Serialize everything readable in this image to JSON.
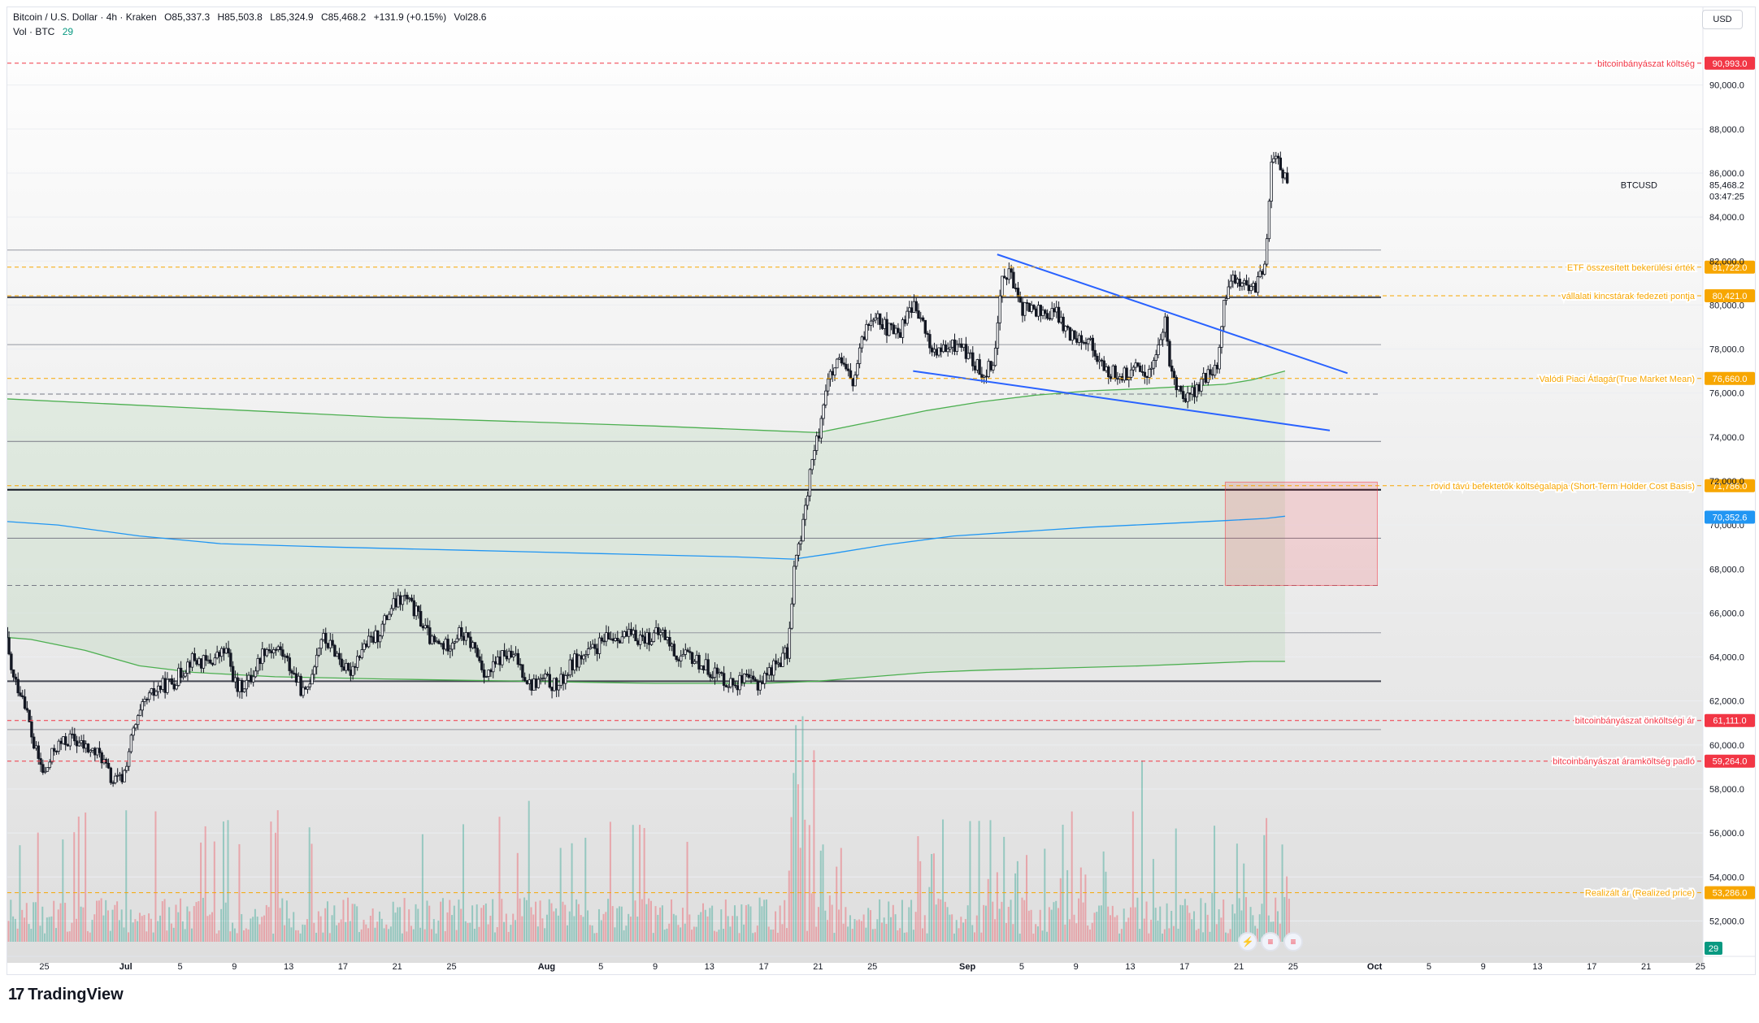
{
  "header": {
    "symbol": "Bitcoin / U.S. Dollar · 4h · Kraken",
    "open": "O85,337.3",
    "high": "H85,503.8",
    "low": "L85,324.9",
    "close": "C85,468.2",
    "change": "+131.9 (+0.15%)",
    "vol_label": "Vol28.6",
    "sub_label": "Vol · BTC",
    "sub_value": "29"
  },
  "currency_button": "USD",
  "brand": "TradingView",
  "icons": [
    "tradingview-logo-icon",
    "lightning-icon",
    "us-flag-icon",
    "us-flag-icon"
  ],
  "colors": {
    "up": "#089981",
    "down": "#131722",
    "red_level": "#f23645",
    "orange_level": "#f7a600",
    "blue_level": "#2962ff",
    "green_band": "#4caf50",
    "blue_ma": "#2196f3",
    "pink_box": "#f8bbd0"
  },
  "chart_data": {
    "type": "candlestick",
    "symbol": "BTCUSD",
    "timeframe": "4h",
    "ylim": [
      50500,
      92500
    ],
    "y_ticks": [
      52000,
      54000,
      56000,
      58000,
      60000,
      62000,
      64000,
      66000,
      68000,
      70000,
      72000,
      74000,
      76000,
      78000,
      80000,
      82000,
      84000,
      86000,
      88000,
      90000
    ],
    "y_tick_labels": [
      "52,000.0",
      "54,000.0",
      "56,000.0",
      "58,000.0",
      "60,000.0",
      "62,000.0",
      "64,000.0",
      "66,000.0",
      "68,000.0",
      "70,000.0",
      "72,000.0",
      "74,000.0",
      "76,000.0",
      "78,000.0",
      "80,000.0",
      "82,000.0",
      "84,000.0",
      "86,000.0",
      "88,000.0",
      "90,000.0"
    ],
    "x_ticks": [
      {
        "day": -5,
        "label": "25"
      },
      {
        "day": 1,
        "label": "Jul"
      },
      {
        "day": 5,
        "label": "5"
      },
      {
        "day": 9,
        "label": "9"
      },
      {
        "day": 13,
        "label": "13"
      },
      {
        "day": 17,
        "label": "17"
      },
      {
        "day": 21,
        "label": "21"
      },
      {
        "day": 25,
        "label": "25"
      },
      {
        "day": 32,
        "label": "Aug"
      },
      {
        "day": 36,
        "label": "5"
      },
      {
        "day": 40,
        "label": "9"
      },
      {
        "day": 44,
        "label": "13"
      },
      {
        "day": 48,
        "label": "17"
      },
      {
        "day": 52,
        "label": "21"
      },
      {
        "day": 56,
        "label": "25"
      },
      {
        "day": 63,
        "label": "Sep"
      },
      {
        "day": 67,
        "label": "5"
      },
      {
        "day": 71,
        "label": "9"
      },
      {
        "day": 75,
        "label": "13"
      },
      {
        "day": 79,
        "label": "17"
      },
      {
        "day": 83,
        "label": "21"
      },
      {
        "day": 87,
        "label": "25"
      },
      {
        "day": 93,
        "label": "Oct"
      },
      {
        "day": 97,
        "label": "5"
      },
      {
        "day": 101,
        "label": "9"
      },
      {
        "day": 105,
        "label": "13"
      },
      {
        "day": 109,
        "label": "17"
      },
      {
        "day": 113,
        "label": "21"
      },
      {
        "day": 117,
        "label": "25"
      }
    ],
    "price_path": [
      {
        "day": -8.6,
        "price": 64600
      },
      {
        "day": -8.0,
        "price": 65400
      },
      {
        "day": -7.3,
        "price": 63000
      },
      {
        "day": -6.5,
        "price": 62200
      },
      {
        "day": -5.8,
        "price": 60000
      },
      {
        "day": -5.0,
        "price": 58600
      },
      {
        "day": -4.2,
        "price": 59900
      },
      {
        "day": -3.0,
        "price": 60300
      },
      {
        "day": -1.8,
        "price": 59800
      },
      {
        "day": -0.8,
        "price": 59500
      },
      {
        "day": 0.0,
        "price": 58300
      },
      {
        "day": 0.8,
        "price": 58500
      },
      {
        "day": 1.5,
        "price": 60500
      },
      {
        "day": 2.4,
        "price": 61900
      },
      {
        "day": 3.4,
        "price": 62600
      },
      {
        "day": 4.6,
        "price": 62900
      },
      {
        "day": 5.8,
        "price": 63900
      },
      {
        "day": 7.0,
        "price": 63700
      },
      {
        "day": 8.4,
        "price": 64300
      },
      {
        "day": 9.2,
        "price": 62500
      },
      {
        "day": 10.2,
        "price": 63000
      },
      {
        "day": 11.2,
        "price": 64400
      },
      {
        "day": 12.4,
        "price": 64300
      },
      {
        "day": 13.4,
        "price": 63200
      },
      {
        "day": 14.2,
        "price": 62200
      },
      {
        "day": 15.4,
        "price": 64900
      },
      {
        "day": 16.4,
        "price": 64300
      },
      {
        "day": 17.4,
        "price": 63200
      },
      {
        "day": 18.4,
        "price": 64400
      },
      {
        "day": 19.6,
        "price": 65000
      },
      {
        "day": 20.6,
        "price": 66300
      },
      {
        "day": 21.6,
        "price": 66700
      },
      {
        "day": 22.6,
        "price": 65800
      },
      {
        "day": 23.6,
        "price": 64600
      },
      {
        "day": 24.6,
        "price": 64500
      },
      {
        "day": 25.6,
        "price": 65100
      },
      {
        "day": 26.6,
        "price": 64500
      },
      {
        "day": 27.6,
        "price": 63100
      },
      {
        "day": 28.8,
        "price": 64100
      },
      {
        "day": 29.8,
        "price": 63900
      },
      {
        "day": 30.8,
        "price": 62700
      },
      {
        "day": 31.8,
        "price": 63000
      },
      {
        "day": 32.8,
        "price": 62600
      },
      {
        "day": 34.0,
        "price": 63800
      },
      {
        "day": 35.0,
        "price": 64100
      },
      {
        "day": 36.2,
        "price": 64700
      },
      {
        "day": 37.2,
        "price": 65000
      },
      {
        "day": 38.4,
        "price": 64900
      },
      {
        "day": 39.6,
        "price": 64900
      },
      {
        "day": 40.6,
        "price": 65100
      },
      {
        "day": 41.6,
        "price": 64000
      },
      {
        "day": 42.6,
        "price": 64000
      },
      {
        "day": 43.6,
        "price": 63600
      },
      {
        "day": 44.6,
        "price": 63200
      },
      {
        "day": 45.6,
        "price": 62800
      },
      {
        "day": 46.6,
        "price": 62900
      },
      {
        "day": 47.6,
        "price": 62800
      },
      {
        "day": 48.6,
        "price": 63500
      },
      {
        "day": 49.4,
        "price": 64000
      },
      {
        "day": 49.8,
        "price": 64200
      },
      {
        "day": 50.2,
        "price": 68000
      },
      {
        "day": 50.8,
        "price": 69500
      },
      {
        "day": 51.4,
        "price": 72500
      },
      {
        "day": 52.0,
        "price": 74000
      },
      {
        "day": 52.6,
        "price": 76400
      },
      {
        "day": 53.6,
        "price": 77400
      },
      {
        "day": 54.6,
        "price": 76400
      },
      {
        "day": 55.4,
        "price": 78700
      },
      {
        "day": 56.2,
        "price": 79800
      },
      {
        "day": 57.0,
        "price": 78900
      },
      {
        "day": 58.0,
        "price": 78700
      },
      {
        "day": 58.8,
        "price": 80100
      },
      {
        "day": 59.6,
        "price": 79300
      },
      {
        "day": 60.4,
        "price": 77900
      },
      {
        "day": 61.4,
        "price": 77900
      },
      {
        "day": 62.4,
        "price": 78300
      },
      {
        "day": 63.4,
        "price": 77400
      },
      {
        "day": 64.2,
        "price": 76900
      },
      {
        "day": 65.0,
        "price": 77600
      },
      {
        "day": 65.6,
        "price": 81600
      },
      {
        "day": 66.2,
        "price": 81400
      },
      {
        "day": 66.8,
        "price": 79900
      },
      {
        "day": 67.8,
        "price": 79800
      },
      {
        "day": 68.8,
        "price": 79600
      },
      {
        "day": 69.6,
        "price": 79600
      },
      {
        "day": 70.4,
        "price": 78700
      },
      {
        "day": 71.4,
        "price": 78600
      },
      {
        "day": 72.2,
        "price": 78200
      },
      {
        "day": 73.0,
        "price": 77000
      },
      {
        "day": 73.8,
        "price": 76900
      },
      {
        "day": 74.8,
        "price": 76800
      },
      {
        "day": 75.6,
        "price": 77100
      },
      {
        "day": 76.4,
        "price": 76900
      },
      {
        "day": 77.2,
        "price": 78400
      },
      {
        "day": 77.6,
        "price": 79200
      },
      {
        "day": 78.0,
        "price": 76800
      },
      {
        "day": 78.6,
        "price": 76300
      },
      {
        "day": 79.2,
        "price": 75800
      },
      {
        "day": 79.8,
        "price": 76100
      },
      {
        "day": 80.6,
        "price": 76700
      },
      {
        "day": 81.4,
        "price": 77200
      },
      {
        "day": 82.0,
        "price": 80400
      },
      {
        "day": 82.6,
        "price": 81300
      },
      {
        "day": 83.2,
        "price": 81100
      },
      {
        "day": 83.8,
        "price": 80500
      },
      {
        "day": 84.4,
        "price": 81000
      },
      {
        "day": 85.0,
        "price": 82300
      },
      {
        "day": 85.4,
        "price": 86200
      },
      {
        "day": 85.8,
        "price": 87000
      },
      {
        "day": 86.2,
        "price": 86000
      },
      {
        "day": 86.6,
        "price": 85500
      }
    ],
    "support_trendline": [
      {
        "day": 59.0,
        "price": 77000
      },
      {
        "day": 89.7,
        "price": 74300
      }
    ],
    "resistance_trendline": [
      {
        "day": 65.2,
        "price": 82300
      },
      {
        "day": 91.0,
        "price": 76900
      }
    ],
    "green_upper_band": [
      {
        "day": -10.0,
        "price": 75800
      },
      {
        "day": 0.0,
        "price": 75500
      },
      {
        "day": 10.0,
        "price": 75200
      },
      {
        "day": 20.0,
        "price": 74900
      },
      {
        "day": 30.0,
        "price": 74700
      },
      {
        "day": 40.0,
        "price": 74500
      },
      {
        "day": 48.0,
        "price": 74300
      },
      {
        "day": 52.0,
        "price": 74200
      },
      {
        "day": 56.0,
        "price": 74700
      },
      {
        "day": 60.0,
        "price": 75200
      },
      {
        "day": 64.0,
        "price": 75600
      },
      {
        "day": 68.0,
        "price": 75900
      },
      {
        "day": 72.0,
        "price": 76100
      },
      {
        "day": 76.0,
        "price": 76200
      },
      {
        "day": 79.0,
        "price": 76300
      },
      {
        "day": 82.0,
        "price": 76400
      },
      {
        "day": 84.0,
        "price": 76600
      },
      {
        "day": 85.2,
        "price": 76800
      },
      {
        "day": 86.4,
        "price": 77000
      }
    ],
    "green_lower_band": [
      {
        "day": -10.0,
        "price": 65000
      },
      {
        "day": -6.0,
        "price": 64800
      },
      {
        "day": -2.0,
        "price": 64300
      },
      {
        "day": 2.0,
        "price": 63600
      },
      {
        "day": 6.0,
        "price": 63300
      },
      {
        "day": 12.0,
        "price": 63100
      },
      {
        "day": 20.0,
        "price": 63000
      },
      {
        "day": 30.0,
        "price": 62900
      },
      {
        "day": 40.0,
        "price": 62800
      },
      {
        "day": 48.0,
        "price": 62800
      },
      {
        "day": 52.0,
        "price": 62900
      },
      {
        "day": 56.0,
        "price": 63100
      },
      {
        "day": 60.0,
        "price": 63300
      },
      {
        "day": 64.0,
        "price": 63400
      },
      {
        "day": 70.0,
        "price": 63500
      },
      {
        "day": 76.0,
        "price": 63600
      },
      {
        "day": 80.0,
        "price": 63700
      },
      {
        "day": 84.0,
        "price": 63800
      },
      {
        "day": 86.4,
        "price": 63800
      }
    ],
    "blue_ma": [
      {
        "day": -10.0,
        "price": 70250
      },
      {
        "day": -4.0,
        "price": 70000
      },
      {
        "day": 2.0,
        "price": 69500
      },
      {
        "day": 8.0,
        "price": 69150
      },
      {
        "day": 16.0,
        "price": 69000
      },
      {
        "day": 26.0,
        "price": 68850
      },
      {
        "day": 36.0,
        "price": 68700
      },
      {
        "day": 46.0,
        "price": 68550
      },
      {
        "day": 50.2,
        "price": 68450
      },
      {
        "day": 53.0,
        "price": 68700
      },
      {
        "day": 57.0,
        "price": 69100
      },
      {
        "day": 62.0,
        "price": 69500
      },
      {
        "day": 67.0,
        "price": 69700
      },
      {
        "day": 72.0,
        "price": 69900
      },
      {
        "day": 77.0,
        "price": 70050
      },
      {
        "day": 82.0,
        "price": 70200
      },
      {
        "day": 85.0,
        "price": 70300
      },
      {
        "day": 86.4,
        "price": 70400
      }
    ],
    "horizontal_levels": [
      {
        "price": 90993,
        "style": "dashed",
        "color": "#f23645",
        "label": "bitcoinbányászat költség",
        "badge": "90,993.0"
      },
      {
        "price": 81722,
        "style": "dashed",
        "color": "#f7a600",
        "label": "ETF összesített bekerülési érték",
        "badge": "81,722.0"
      },
      {
        "price": 80421,
        "style": "dashed",
        "color": "#f7a600",
        "label": "vállalati kincstárak fedezeti pontja",
        "badge": "80,421.0"
      },
      {
        "price": 76660,
        "style": "dashed",
        "color": "#f7a600",
        "label": "Valódi Piaci Átlagár(True Market Mean)",
        "badge": "76,660.0"
      },
      {
        "price": 71786,
        "style": "dashed",
        "color": "#f7a600",
        "label": "rövid távú befektetők költségalapja (Short-Term Holder Cost Basis)",
        "badge": "71,786.0"
      },
      {
        "price": 61111,
        "style": "dashed",
        "color": "#f23645",
        "label": "bitcoinbányászat önköltségi ár",
        "badge": "61,111.0"
      },
      {
        "price": 59264,
        "style": "dashed",
        "color": "#f23645",
        "label": "bitcoinbányászat áramköltség padló",
        "badge": "59,264.0"
      },
      {
        "price": 53286,
        "style": "dashed",
        "color": "#f7a600",
        "label": "Realizált ár (Realized price)",
        "badge": "53,286.0"
      }
    ],
    "grey_lines": [
      {
        "price": 82500,
        "width": 1,
        "color": "#9598a1",
        "dash": false
      },
      {
        "price": 80350,
        "width": 2,
        "color": "#434651",
        "dash": false
      },
      {
        "price": 78200,
        "width": 1,
        "color": "#9598a1",
        "dash": false
      },
      {
        "price": 75950,
        "width": 1,
        "color": "#787b86",
        "dash": true
      },
      {
        "price": 73800,
        "width": 1,
        "color": "#787b86",
        "dash": false
      },
      {
        "price": 71600,
        "width": 2,
        "color": "#131722",
        "dash": false
      },
      {
        "price": 69400,
        "width": 1,
        "color": "#787b86",
        "dash": false
      },
      {
        "price": 67250,
        "width": 1,
        "color": "#787b86",
        "dash": true
      },
      {
        "price": 65100,
        "width": 1,
        "color": "#9598a1",
        "dash": false
      },
      {
        "price": 62900,
        "width": 2,
        "color": "#434651",
        "dash": false
      },
      {
        "price": 60700,
        "width": 1,
        "color": "#9598a1",
        "dash": false
      }
    ],
    "highlight_box": {
      "day_from": 82.0,
      "day_to": 93.2,
      "price_from": 67250,
      "price_to": 71950
    },
    "current_price": {
      "ticker": "BTCUSD",
      "value": "85,468.2",
      "countdown": "03:47:25"
    },
    "blue_badge": "70,352.6",
    "volume_badge": "29"
  }
}
